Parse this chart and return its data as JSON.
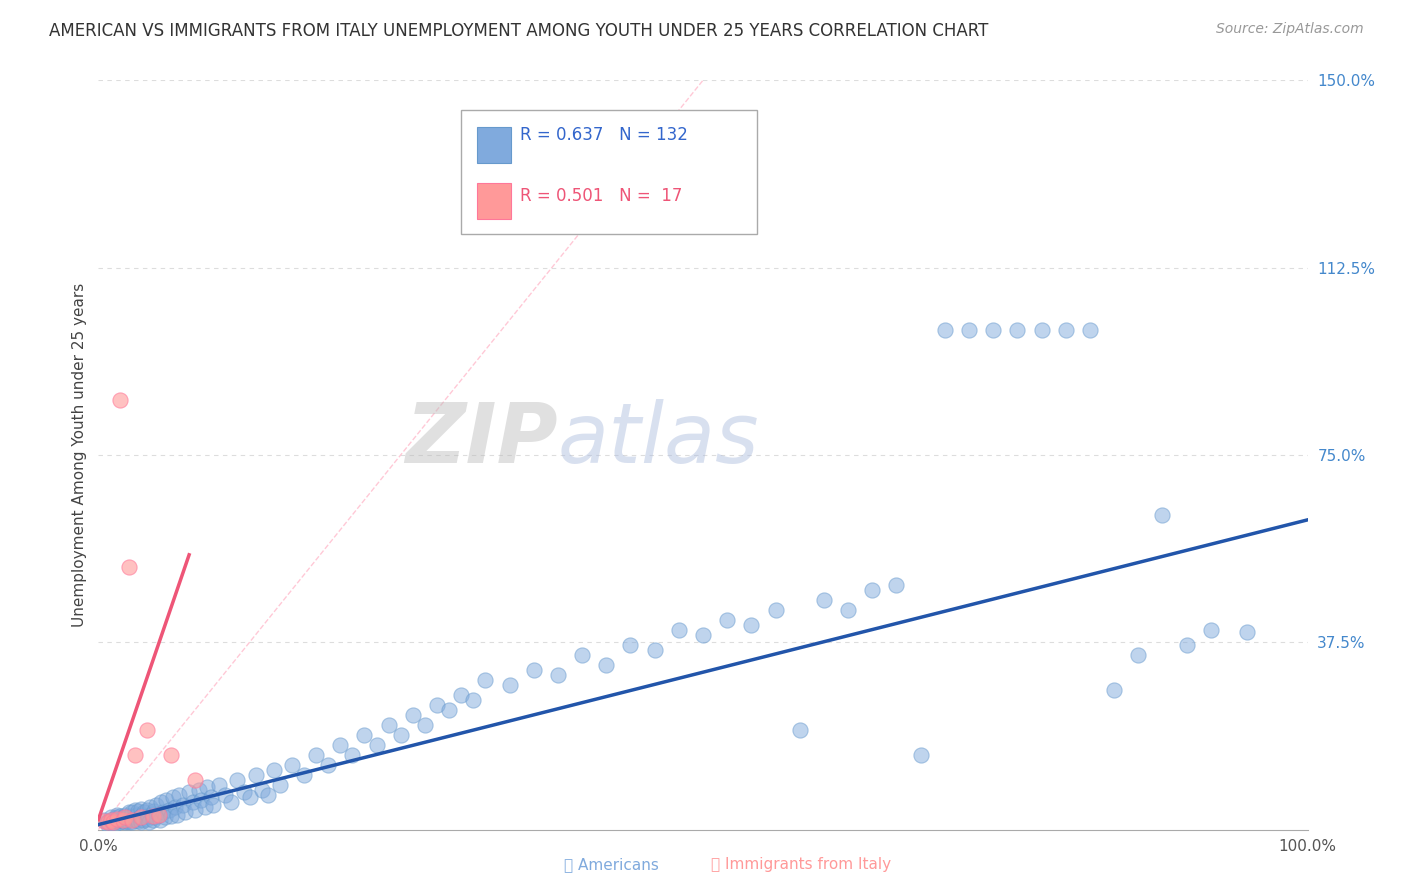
{
  "title": "AMERICAN VS IMMIGRANTS FROM ITALY UNEMPLOYMENT AMONG YOUTH UNDER 25 YEARS CORRELATION CHART",
  "source": "Source: ZipAtlas.com",
  "ylabel": "Unemployment Among Youth under 25 years",
  "legend_labels": [
    "Americans",
    "Immigrants from Italy"
  ],
  "R_americans": 0.637,
  "N_americans": 132,
  "R_italy": 0.501,
  "N_italy": 17,
  "xlim": [
    0.0,
    1.0
  ],
  "ylim": [
    0.0,
    1.5
  ],
  "american_color": "#80AADD",
  "italy_color": "#FF9999",
  "american_line_color": "#2255AA",
  "italy_line_color": "#EE5577",
  "diag_line_color": "#FFCCCC",
  "watermark_zip": "#CCCCCC",
  "watermark_atlas": "#BBCCEE",
  "background_color": "#FFFFFF",
  "grid_color": "#DDDDDD",
  "title_color": "#333333",
  "source_color": "#999999",
  "right_tick_color": "#4488CC",
  "americans_x": [
    0.005,
    0.007,
    0.008,
    0.01,
    0.01,
    0.012,
    0.012,
    0.013,
    0.015,
    0.015,
    0.015,
    0.017,
    0.018,
    0.018,
    0.02,
    0.02,
    0.021,
    0.022,
    0.022,
    0.023,
    0.024,
    0.024,
    0.025,
    0.025,
    0.026,
    0.027,
    0.028,
    0.028,
    0.03,
    0.03,
    0.031,
    0.032,
    0.033,
    0.033,
    0.034,
    0.035,
    0.035,
    0.036,
    0.037,
    0.038,
    0.04,
    0.04,
    0.041,
    0.042,
    0.043,
    0.044,
    0.045,
    0.046,
    0.047,
    0.048,
    0.05,
    0.051,
    0.052,
    0.053,
    0.055,
    0.056,
    0.058,
    0.06,
    0.062,
    0.063,
    0.065,
    0.067,
    0.07,
    0.072,
    0.075,
    0.078,
    0.08,
    0.083,
    0.085,
    0.088,
    0.09,
    0.093,
    0.095,
    0.1,
    0.105,
    0.11,
    0.115,
    0.12,
    0.125,
    0.13,
    0.135,
    0.14,
    0.145,
    0.15,
    0.16,
    0.17,
    0.18,
    0.19,
    0.2,
    0.21,
    0.22,
    0.23,
    0.24,
    0.25,
    0.26,
    0.27,
    0.28,
    0.29,
    0.3,
    0.31,
    0.32,
    0.34,
    0.36,
    0.38,
    0.4,
    0.42,
    0.44,
    0.46,
    0.48,
    0.5,
    0.52,
    0.54,
    0.56,
    0.58,
    0.6,
    0.62,
    0.64,
    0.66,
    0.68,
    0.7,
    0.72,
    0.74,
    0.76,
    0.78,
    0.8,
    0.82,
    0.84,
    0.86,
    0.88,
    0.9,
    0.92,
    0.95
  ],
  "americans_y": [
    0.02,
    0.015,
    0.01,
    0.018,
    0.025,
    0.015,
    0.022,
    0.01,
    0.025,
    0.018,
    0.03,
    0.02,
    0.015,
    0.028,
    0.018,
    0.025,
    0.02,
    0.015,
    0.03,
    0.022,
    0.018,
    0.025,
    0.015,
    0.035,
    0.022,
    0.028,
    0.015,
    0.035,
    0.025,
    0.04,
    0.02,
    0.03,
    0.018,
    0.038,
    0.025,
    0.015,
    0.042,
    0.03,
    0.02,
    0.035,
    0.022,
    0.04,
    0.028,
    0.015,
    0.045,
    0.032,
    0.02,
    0.038,
    0.025,
    0.05,
    0.03,
    0.02,
    0.055,
    0.035,
    0.025,
    0.06,
    0.04,
    0.028,
    0.065,
    0.045,
    0.03,
    0.07,
    0.05,
    0.035,
    0.075,
    0.055,
    0.04,
    0.08,
    0.06,
    0.045,
    0.085,
    0.065,
    0.05,
    0.09,
    0.07,
    0.055,
    0.1,
    0.075,
    0.065,
    0.11,
    0.08,
    0.07,
    0.12,
    0.09,
    0.13,
    0.11,
    0.15,
    0.13,
    0.17,
    0.15,
    0.19,
    0.17,
    0.21,
    0.19,
    0.23,
    0.21,
    0.25,
    0.24,
    0.27,
    0.26,
    0.3,
    0.29,
    0.32,
    0.31,
    0.35,
    0.33,
    0.37,
    0.36,
    0.4,
    0.39,
    0.42,
    0.41,
    0.44,
    0.2,
    0.46,
    0.44,
    0.48,
    0.49,
    0.15,
    1.0,
    1.0,
    1.0,
    1.0,
    1.0,
    1.0,
    1.0,
    0.28,
    0.35,
    0.63,
    0.37,
    0.4,
    0.395
  ],
  "italy_x": [
    0.005,
    0.008,
    0.01,
    0.012,
    0.015,
    0.018,
    0.02,
    0.022,
    0.025,
    0.028,
    0.03,
    0.035,
    0.04,
    0.045,
    0.05,
    0.06,
    0.08
  ],
  "italy_y": [
    0.018,
    0.015,
    0.02,
    0.015,
    0.022,
    0.86,
    0.02,
    0.025,
    0.525,
    0.02,
    0.15,
    0.025,
    0.2,
    0.028,
    0.03,
    0.15,
    0.1
  ]
}
